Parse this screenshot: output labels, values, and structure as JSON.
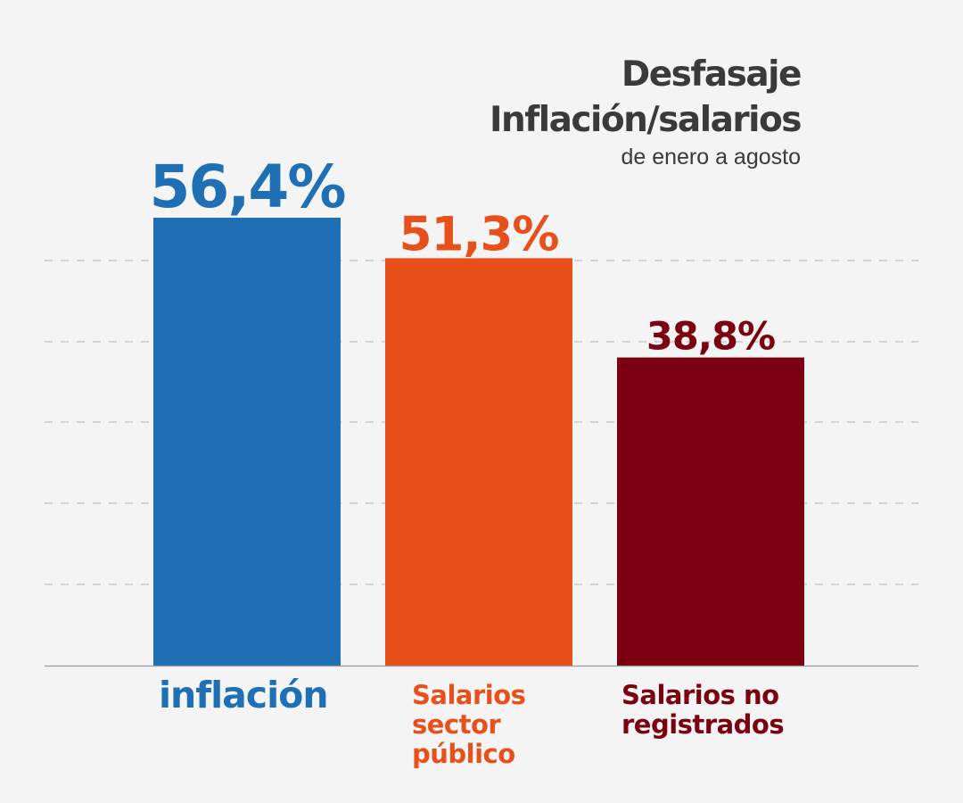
{
  "chart_data": {
    "type": "bar",
    "title": "Desfasaje Inflación/salarios",
    "title_lines": [
      "Desfasaje",
      "Inflación/salarios"
    ],
    "subtitle": "de enero a agosto",
    "categories": [
      "inflación",
      "Salarios sector público",
      "Salarios no registrados"
    ],
    "category_label_lines": [
      [
        "inflación"
      ],
      [
        "Salarios",
        "sector",
        "público"
      ],
      [
        "Salarios no",
        "registrados"
      ]
    ],
    "values": [
      56.4,
      51.3,
      38.8
    ],
    "value_labels": [
      "56,4%",
      "51,3%",
      "38,8%"
    ],
    "colors": [
      "#1f6fb5",
      "#e8501b",
      "#7b0010"
    ],
    "ylim": [
      0,
      56.4
    ],
    "grid": true,
    "xlabel": "",
    "ylabel": ""
  }
}
